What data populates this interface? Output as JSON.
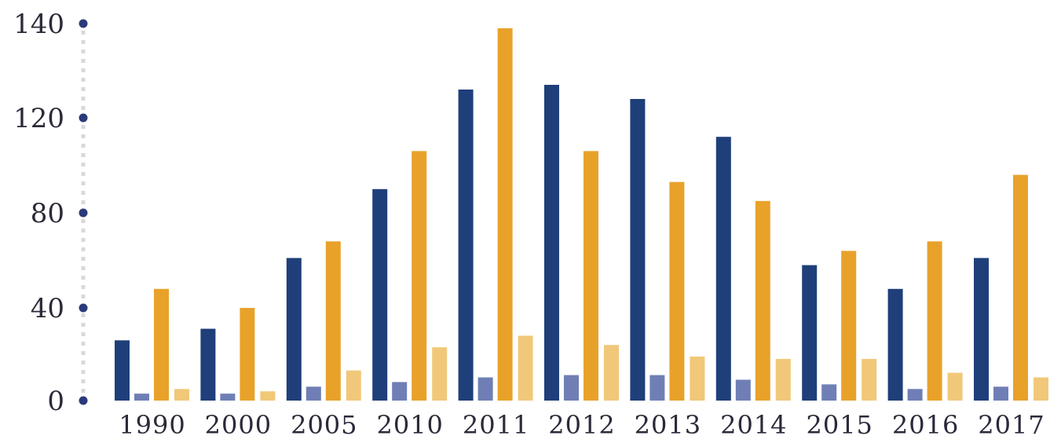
{
  "chart_data": {
    "type": "bar",
    "categories": [
      "1990",
      "2000",
      "2005",
      "2010",
      "2011",
      "2012",
      "2013",
      "2014",
      "2015",
      "2016",
      "2017"
    ],
    "series": [
      {
        "values": [
          26,
          31,
          61,
          90,
          126,
          127,
          124,
          112,
          58,
          48,
          61
        ],
        "color": "#1f3f7a"
      },
      {
        "values": [
          3,
          3,
          6,
          8,
          10,
          11,
          11,
          9,
          7,
          5,
          6
        ],
        "color": "#6f7fb6"
      },
      {
        "values": [
          48,
          40,
          68,
          106,
          139,
          106,
          93,
          85,
          64,
          68,
          96
        ],
        "color": "#e8a22a"
      },
      {
        "values": [
          5,
          4,
          13,
          23,
          28,
          24,
          19,
          18,
          18,
          12,
          10
        ],
        "color": "#f1c879"
      }
    ],
    "yticks": [
      "0",
      "40",
      "80",
      "120",
      "140"
    ],
    "ylim": [
      0,
      140
    ],
    "title": "",
    "xlabel": "",
    "ylabel": "",
    "legend": "none",
    "grid": false,
    "axis_dot_color": "#2b3a7a",
    "axis_line_color": "#d8d8dc"
  }
}
